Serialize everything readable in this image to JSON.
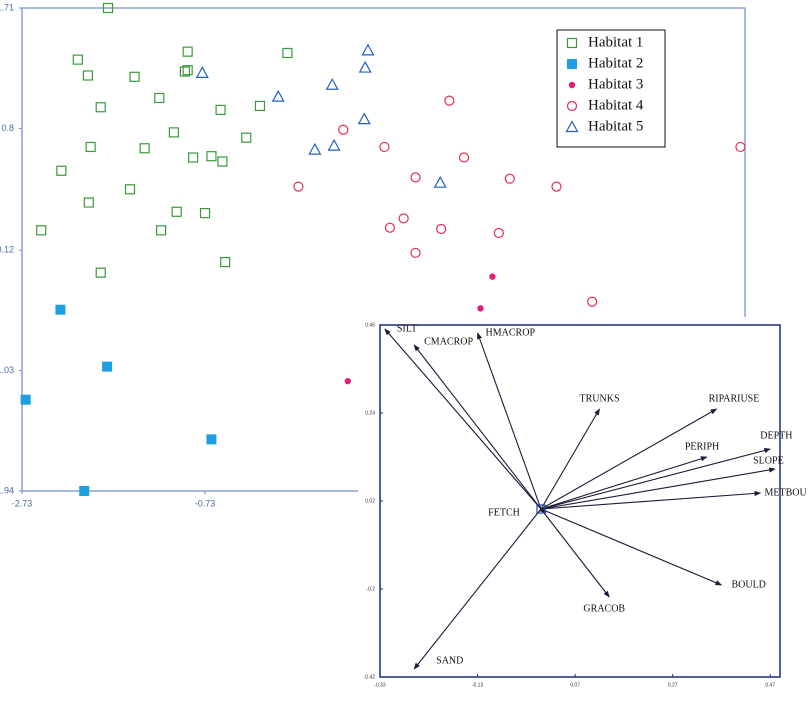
{
  "chart_data": [
    {
      "type": "scatter",
      "xlim": [
        -2.73,
        5.17
      ],
      "xticks": [
        -2.73,
        -0.73
      ],
      "ylim": [
        -1.94,
        1.71
      ],
      "yticks": [
        1.71,
        0.8,
        -0.12,
        -1.03,
        -1.94
      ],
      "legend": "top-right",
      "series": [
        {
          "name": "Habitat 1",
          "color": "#3a9a3a",
          "marker": "square-open",
          "x": [
            -1.79,
            -2.12,
            -0.92,
            -2.01,
            -1.5,
            -0.95,
            -0.92,
            0.17,
            -1.23,
            -1.87,
            -0.56,
            -0.13,
            -1.07,
            -1.98,
            -1.39,
            -0.28,
            -0.86,
            -0.66,
            -0.54,
            -2.3,
            -1.55,
            -2.0,
            -1.04,
            -0.73,
            -2.52,
            -1.21,
            -1.87,
            -0.51
          ],
          "y": [
            1.71,
            1.32,
            1.38,
            1.2,
            1.19,
            1.23,
            1.24,
            1.37,
            1.03,
            0.96,
            0.94,
            0.97,
            0.77,
            0.66,
            0.65,
            0.73,
            0.58,
            0.59,
            0.55,
            0.48,
            0.34,
            0.24,
            0.17,
            0.16,
            0.03,
            0.03,
            -0.29,
            -0.21
          ]
        },
        {
          "name": "Habitat 2",
          "color": "#1ea0e0",
          "marker": "square-filled",
          "x": [
            -2.31,
            -1.8,
            -2.69,
            -0.66,
            -2.05
          ],
          "y": [
            -0.57,
            -1.0,
            -1.25,
            -1.55,
            -1.94
          ]
        },
        {
          "name": "Habitat 3",
          "color": "#e0207a",
          "marker": "circle-filled",
          "x": [
            2.41,
            2.28,
            0.83
          ],
          "y": [
            -0.32,
            -0.56,
            -1.11
          ]
        },
        {
          "name": "Habitat 4",
          "color": "#e03050",
          "marker": "circle-open",
          "x": [
            1.94,
            0.78,
            1.23,
            2.1,
            5.12,
            0.29,
            1.57,
            2.6,
            3.11,
            1.44,
            1.29,
            1.85,
            2.48,
            1.57,
            3.5
          ],
          "y": [
            1.01,
            0.79,
            0.66,
            0.58,
            0.66,
            0.36,
            0.43,
            0.42,
            0.36,
            0.12,
            0.05,
            0.04,
            0.01,
            -0.14,
            -0.51
          ]
        },
        {
          "name": "Habitat 5",
          "color": "#2060c0",
          "marker": "triangle-open",
          "x": [
            1.05,
            -0.76,
            1.02,
            0.66,
            0.07,
            1.01,
            0.68,
            0.47,
            1.84
          ],
          "y": [
            1.39,
            1.22,
            1.26,
            1.13,
            1.04,
            0.87,
            0.67,
            0.64,
            0.39
          ]
        }
      ]
    },
    {
      "type": "vector",
      "xlim": [
        -0.33,
        0.49
      ],
      "xticks": [
        -0.33,
        -0.13,
        0.07,
        0.27,
        0.47
      ],
      "ylim": [
        -0.42,
        0.46
      ],
      "yticks": [
        0.46,
        0.24,
        0.02,
        -0.2,
        -0.42
      ],
      "color": "#1a1a3a",
      "vectors": [
        {
          "name": "SILT",
          "x": -0.32,
          "y": 0.45
        },
        {
          "name": "CMACROP",
          "x": -0.26,
          "y": 0.41
        },
        {
          "name": "HMACROP",
          "x": -0.13,
          "y": 0.44
        },
        {
          "name": "TRUNKS",
          "x": 0.12,
          "y": 0.25
        },
        {
          "name": "RIPARIUSE",
          "x": 0.36,
          "y": 0.25
        },
        {
          "name": "PERIPH",
          "x": 0.34,
          "y": 0.13
        },
        {
          "name": "DEPTH",
          "x": 0.47,
          "y": 0.15
        },
        {
          "name": "SLOPE",
          "x": 0.48,
          "y": 0.1
        },
        {
          "name": "METBOU",
          "x": 0.45,
          "y": 0.04
        },
        {
          "name": "FETCH",
          "x": 0.01,
          "y": -0.01
        },
        {
          "name": "BOULD",
          "x": 0.37,
          "y": -0.19
        },
        {
          "name": "GRACOB",
          "x": 0.14,
          "y": -0.22
        },
        {
          "name": "SAND",
          "x": -0.26,
          "y": -0.4
        }
      ]
    }
  ]
}
